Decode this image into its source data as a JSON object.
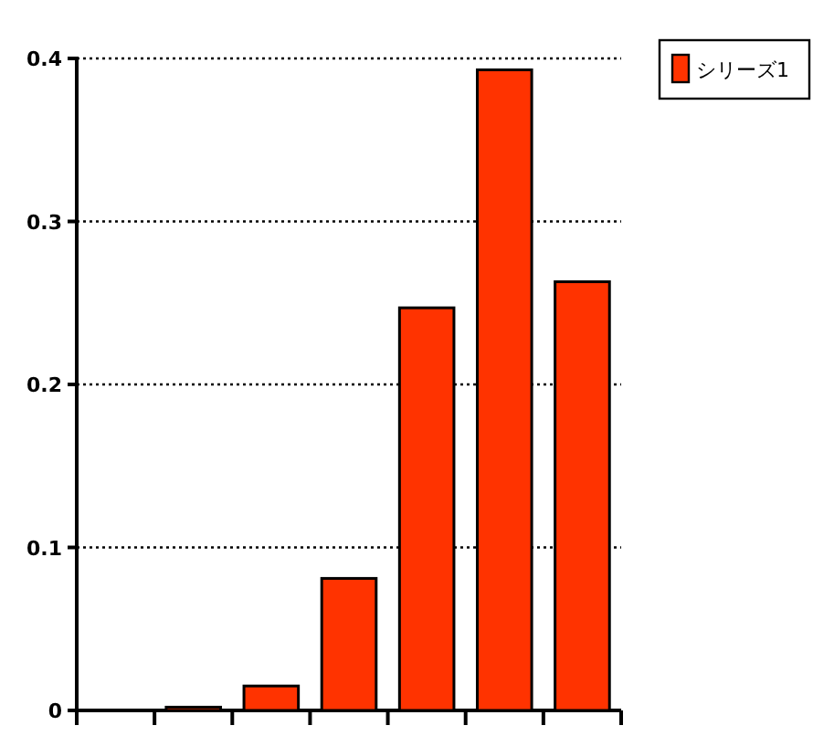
{
  "chart_data": {
    "type": "bar",
    "categories": [
      null,
      null,
      null,
      null,
      null,
      null,
      null
    ],
    "series": [
      {
        "name": "シリーズ1",
        "color": "#ff3300",
        "values": [
          0,
          0.002,
          0.015,
          0.081,
          0.247,
          0.393,
          0.263
        ]
      }
    ],
    "ylim": [
      0,
      0.4
    ],
    "yticks": [
      0,
      0.1,
      0.2,
      0.3,
      0.4
    ],
    "grid": "y",
    "legend": "top right"
  }
}
